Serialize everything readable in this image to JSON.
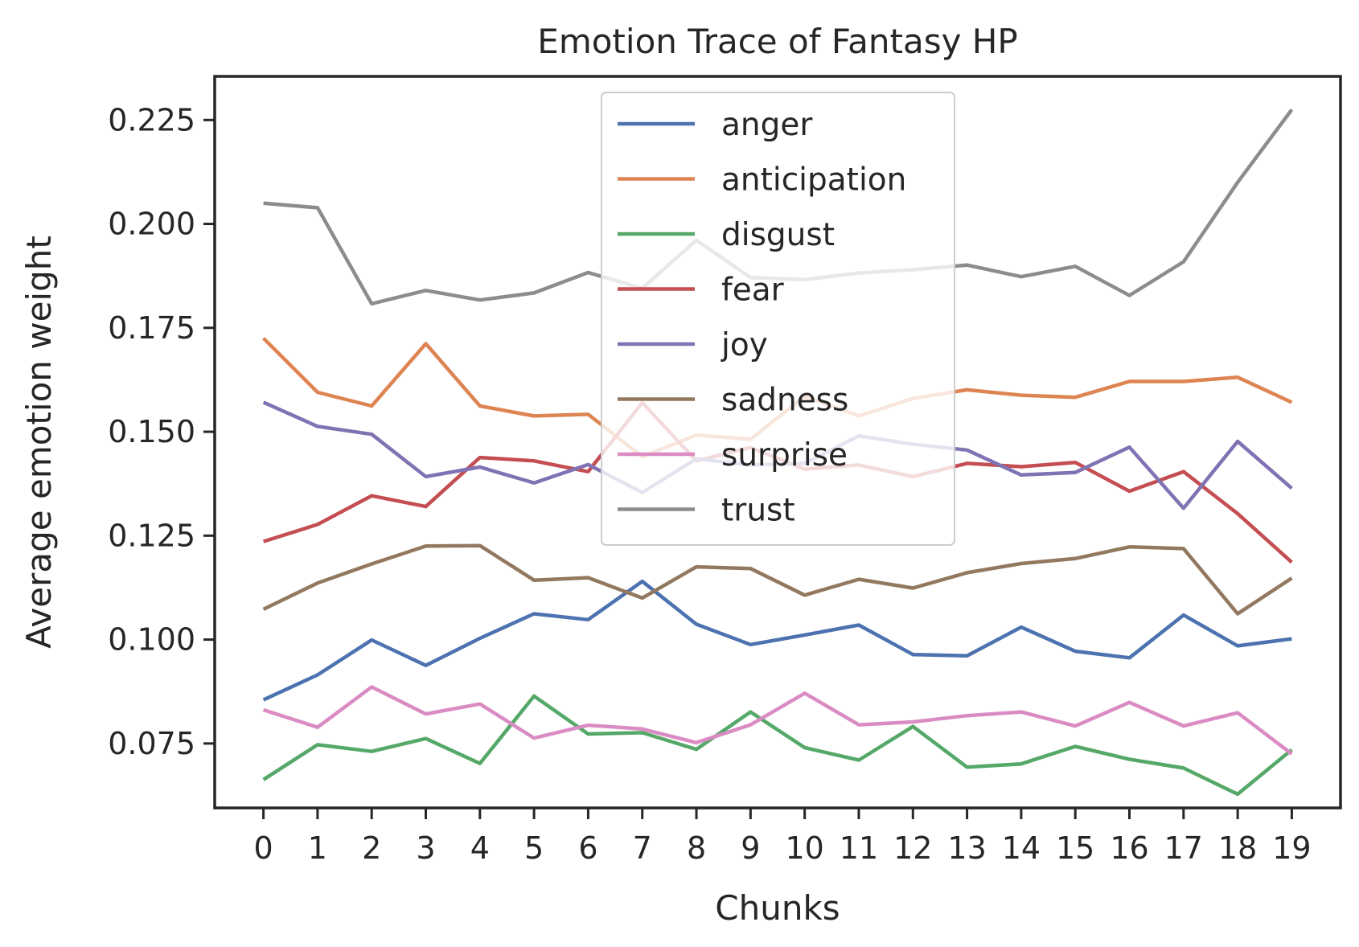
{
  "chart_data": {
    "type": "line",
    "title": "Emotion Trace of Fantasy HP",
    "xlabel": "Chunks",
    "ylabel": "Average emotion weight",
    "x": [
      0,
      1,
      2,
      3,
      4,
      5,
      6,
      7,
      8,
      9,
      10,
      11,
      12,
      13,
      14,
      15,
      16,
      17,
      18,
      19
    ],
    "x_ticks": [
      "0",
      "1",
      "2",
      "3",
      "4",
      "5",
      "6",
      "7",
      "8",
      "9",
      "10",
      "11",
      "12",
      "13",
      "14",
      "15",
      "16",
      "17",
      "18",
      "19"
    ],
    "y_ticks": [
      "0.075",
      "0.100",
      "0.125",
      "0.150",
      "0.175",
      "0.200",
      "0.225"
    ],
    "y_tick_values": [
      0.075,
      0.1,
      0.125,
      0.15,
      0.175,
      0.2,
      0.225
    ],
    "ylim": [
      0.0595,
      0.2355
    ],
    "xlim": [
      -0.9,
      19.9
    ],
    "grid": false,
    "legend_position": "upper-center",
    "series": [
      {
        "name": "anger",
        "color": "#4c72b0",
        "values": [
          0.0855,
          0.0915,
          0.0999,
          0.0938,
          0.1003,
          0.1062,
          0.1048,
          0.114,
          0.1037,
          0.0988,
          0.1011,
          0.1035,
          0.0964,
          0.0961,
          0.103,
          0.0972,
          0.0956,
          0.1059,
          0.0985,
          0.1002
        ]
      },
      {
        "name": "anticipation",
        "color": "#dd8452",
        "values": [
          0.1725,
          0.1595,
          0.1562,
          0.1712,
          0.1562,
          0.1538,
          0.1542,
          0.144,
          0.1492,
          0.1482,
          0.1585,
          0.1538,
          0.158,
          0.1601,
          0.1588,
          0.1583,
          0.1621,
          0.1621,
          0.1631,
          0.1571
        ]
      },
      {
        "name": "disgust",
        "color": "#55a868",
        "values": [
          0.0663,
          0.0747,
          0.0731,
          0.0762,
          0.0702,
          0.0864,
          0.0773,
          0.0776,
          0.0736,
          0.0826,
          0.074,
          0.071,
          0.0791,
          0.0693,
          0.0701,
          0.0743,
          0.0712,
          0.0691,
          0.0628,
          0.0735
        ]
      },
      {
        "name": "fear",
        "color": "#c44e52",
        "values": [
          0.1236,
          0.1277,
          0.1346,
          0.132,
          0.1438,
          0.143,
          0.1404,
          0.157,
          0.143,
          0.1462,
          0.141,
          0.142,
          0.1392,
          0.1424,
          0.1416,
          0.1426,
          0.1357,
          0.1404,
          0.1303,
          0.1186
        ]
      },
      {
        "name": "joy",
        "color": "#8172b3",
        "values": [
          0.1571,
          0.1513,
          0.1494,
          0.1392,
          0.1415,
          0.1377,
          0.1421,
          0.1354,
          0.1435,
          0.142,
          0.1424,
          0.149,
          0.147,
          0.1456,
          0.1396,
          0.1402,
          0.1463,
          0.1316,
          0.1477,
          0.1364
        ]
      },
      {
        "name": "sadness",
        "color": "#937860",
        "values": [
          0.1073,
          0.1136,
          0.1182,
          0.1225,
          0.1226,
          0.1143,
          0.1149,
          0.11,
          0.1175,
          0.1171,
          0.1107,
          0.1145,
          0.1124,
          0.1161,
          0.1183,
          0.1195,
          0.1223,
          0.1219,
          0.1062,
          0.1148
        ]
      },
      {
        "name": "surprise",
        "color": "#da8bc3",
        "values": [
          0.0831,
          0.0789,
          0.0886,
          0.0821,
          0.0845,
          0.0763,
          0.0794,
          0.0785,
          0.0752,
          0.0795,
          0.0871,
          0.0795,
          0.0802,
          0.0817,
          0.0826,
          0.0792,
          0.0849,
          0.0792,
          0.0824,
          0.0725
        ]
      },
      {
        "name": "trust",
        "color": "#8c8c8c",
        "values": [
          0.205,
          0.2039,
          0.1808,
          0.184,
          0.1817,
          0.1834,
          0.1883,
          0.1845,
          0.1961,
          0.1871,
          0.1866,
          0.1882,
          0.189,
          0.1901,
          0.1873,
          0.1898,
          0.1828,
          0.1909,
          0.21,
          0.2275
        ]
      }
    ]
  }
}
